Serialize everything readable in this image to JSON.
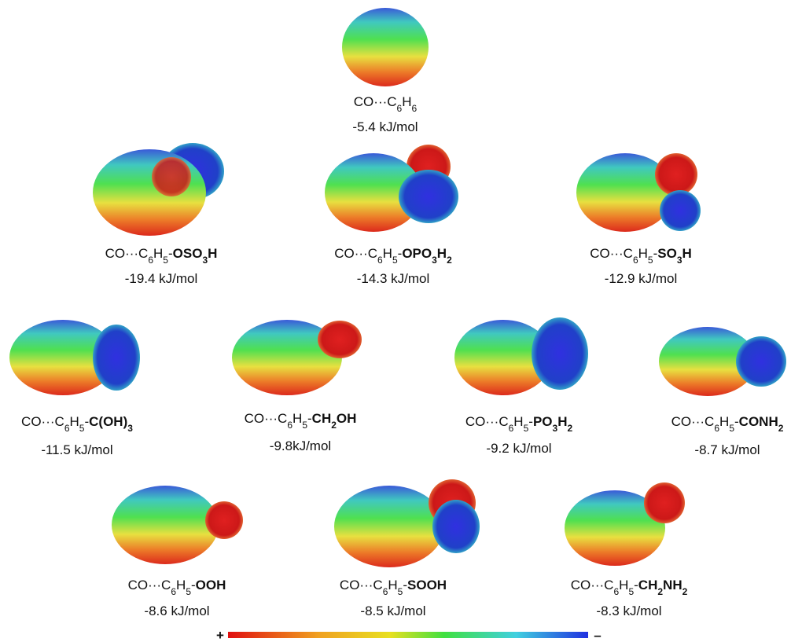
{
  "panels": [
    {
      "formula": [
        {
          "text": "CO···C",
          "style": "normal"
        },
        {
          "text": "6",
          "style": "sub"
        },
        {
          "text": "H",
          "style": "normal"
        },
        {
          "text": "6",
          "style": "sub"
        }
      ],
      "energy": "-5.4 kJ/mol"
    },
    {
      "formula": [
        {
          "text": "CO···C",
          "style": "normal"
        },
        {
          "text": "6",
          "style": "sub"
        },
        {
          "text": "H",
          "style": "normal"
        },
        {
          "text": "5",
          "style": "sub"
        },
        {
          "text": "-",
          "style": "normal"
        },
        {
          "text": "OSO",
          "style": "bold"
        },
        {
          "text": "3",
          "style": "bold-sub"
        },
        {
          "text": "H",
          "style": "bold"
        }
      ],
      "energy": "-19.4 kJ/mol"
    },
    {
      "formula": [
        {
          "text": "CO···C",
          "style": "normal"
        },
        {
          "text": "6",
          "style": "sub"
        },
        {
          "text": "H",
          "style": "normal"
        },
        {
          "text": "5",
          "style": "sub"
        },
        {
          "text": "-",
          "style": "normal"
        },
        {
          "text": "OPO",
          "style": "bold"
        },
        {
          "text": "3",
          "style": "bold-sub"
        },
        {
          "text": "H",
          "style": "bold"
        },
        {
          "text": "2",
          "style": "bold-sub"
        }
      ],
      "energy": "-14.3 kJ/mol"
    },
    {
      "formula": [
        {
          "text": "CO···C",
          "style": "normal"
        },
        {
          "text": "6",
          "style": "sub"
        },
        {
          "text": "H",
          "style": "normal"
        },
        {
          "text": "5",
          "style": "sub"
        },
        {
          "text": "-",
          "style": "normal"
        },
        {
          "text": "SO",
          "style": "bold"
        },
        {
          "text": "3",
          "style": "bold-sub"
        },
        {
          "text": "H",
          "style": "bold"
        }
      ],
      "energy": "-12.9 kJ/mol"
    },
    {
      "formula": [
        {
          "text": "CO···C",
          "style": "normal"
        },
        {
          "text": "6",
          "style": "sub"
        },
        {
          "text": "H",
          "style": "normal"
        },
        {
          "text": "5",
          "style": "sub"
        },
        {
          "text": "-",
          "style": "normal"
        },
        {
          "text": "C(OH)",
          "style": "bold"
        },
        {
          "text": "3",
          "style": "bold-sub"
        }
      ],
      "energy": "-11.5 kJ/mol"
    },
    {
      "formula": [
        {
          "text": "CO···C",
          "style": "normal"
        },
        {
          "text": "6",
          "style": "sub"
        },
        {
          "text": "H",
          "style": "normal"
        },
        {
          "text": "5",
          "style": "sub"
        },
        {
          "text": "-",
          "style": "normal"
        },
        {
          "text": "CH",
          "style": "bold"
        },
        {
          "text": "2",
          "style": "bold-sub"
        },
        {
          "text": "OH",
          "style": "bold"
        }
      ],
      "energy": "-9.8kJ/mol"
    },
    {
      "formula": [
        {
          "text": "CO···C",
          "style": "normal"
        },
        {
          "text": "6",
          "style": "sub"
        },
        {
          "text": "H",
          "style": "normal"
        },
        {
          "text": "5",
          "style": "sub"
        },
        {
          "text": "-",
          "style": "normal"
        },
        {
          "text": "PO",
          "style": "bold"
        },
        {
          "text": "3",
          "style": "bold-sub"
        },
        {
          "text": "H",
          "style": "bold"
        },
        {
          "text": "2",
          "style": "bold-sub"
        }
      ],
      "energy": "-9.2 kJ/mol"
    },
    {
      "formula": [
        {
          "text": "CO···C",
          "style": "normal"
        },
        {
          "text": "6",
          "style": "sub"
        },
        {
          "text": "H",
          "style": "normal"
        },
        {
          "text": "5",
          "style": "sub"
        },
        {
          "text": "-",
          "style": "normal"
        },
        {
          "text": "CONH",
          "style": "bold"
        },
        {
          "text": "2",
          "style": "bold-sub"
        }
      ],
      "energy": "-8.7 kJ/mol"
    },
    {
      "formula": [
        {
          "text": "CO···C",
          "style": "normal"
        },
        {
          "text": "6",
          "style": "sub"
        },
        {
          "text": "H",
          "style": "normal"
        },
        {
          "text": "5",
          "style": "sub"
        },
        {
          "text": "-",
          "style": "normal"
        },
        {
          "text": "OOH",
          "style": "bold"
        }
      ],
      "energy": "-8.6 kJ/mol"
    },
    {
      "formula": [
        {
          "text": "CO···C",
          "style": "normal"
        },
        {
          "text": "6",
          "style": "sub"
        },
        {
          "text": "H",
          "style": "normal"
        },
        {
          "text": "5",
          "style": "sub"
        },
        {
          "text": "-",
          "style": "normal"
        },
        {
          "text": "SOOH",
          "style": "bold"
        }
      ],
      "energy": "-8.5 kJ/mol"
    },
    {
      "formula": [
        {
          "text": "CO···C",
          "style": "normal"
        },
        {
          "text": "6",
          "style": "sub"
        },
        {
          "text": "H",
          "style": "normal"
        },
        {
          "text": "5",
          "style": "sub"
        },
        {
          "text": "-",
          "style": "normal"
        },
        {
          "text": "CH",
          "style": "bold"
        },
        {
          "text": "2",
          "style": "bold-sub"
        },
        {
          "text": "NH",
          "style": "bold"
        },
        {
          "text": "2",
          "style": "bold-sub"
        }
      ],
      "energy": "-8.3 kJ/mol"
    }
  ],
  "colorbar": {
    "plus": "+",
    "minus": "–"
  }
}
